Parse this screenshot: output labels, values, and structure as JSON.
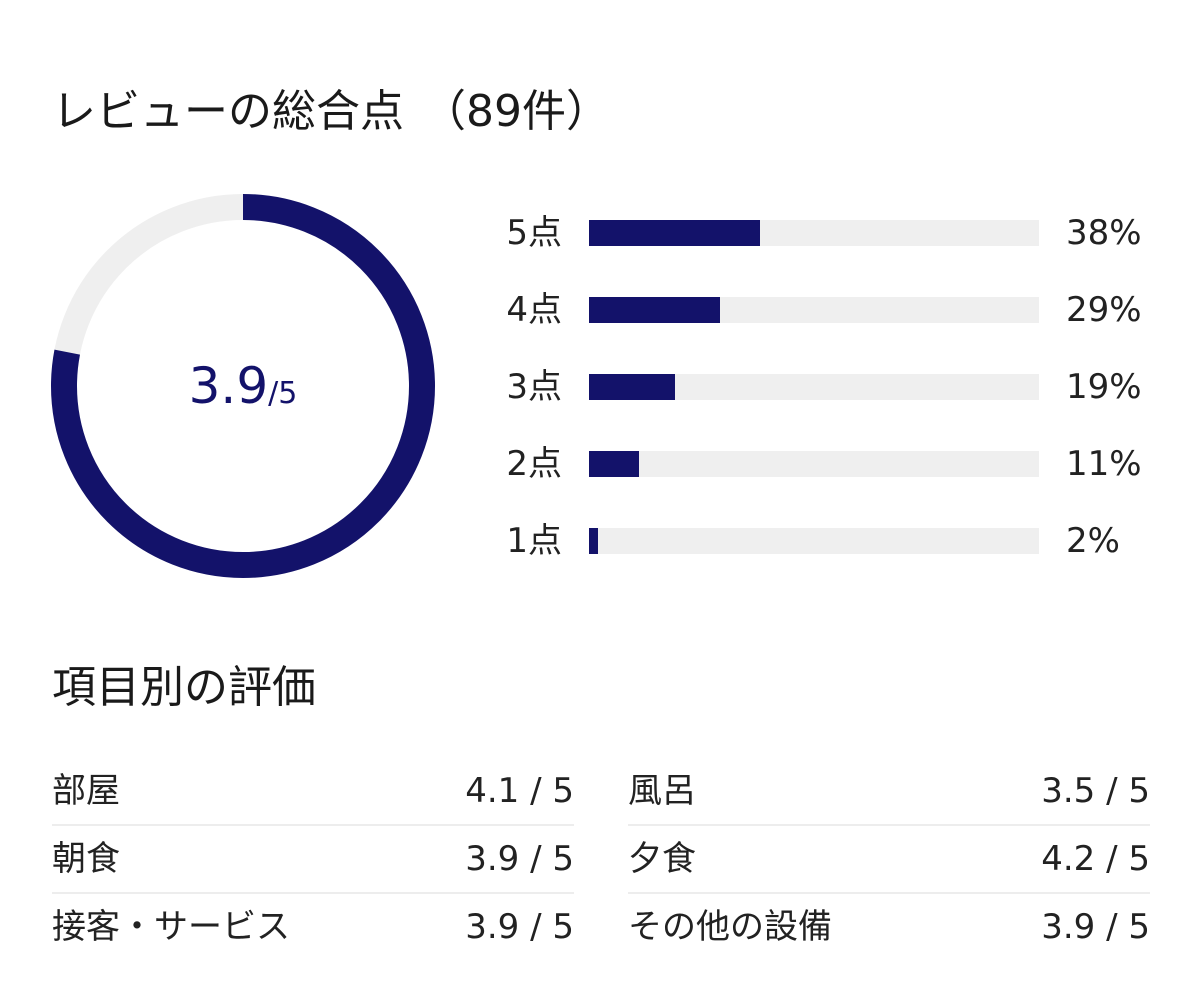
{
  "header": {
    "title": "レビューの総合点",
    "count": "（89件）"
  },
  "overall": {
    "score": "3.9",
    "max": "/5",
    "fraction": 0.78,
    "accent_color": "#13126a",
    "track_color": "#efefef"
  },
  "distribution": [
    {
      "label": "5点",
      "percent": 38,
      "percent_text": "38%"
    },
    {
      "label": "4点",
      "percent": 29,
      "percent_text": "29%"
    },
    {
      "label": "3点",
      "percent": 19,
      "percent_text": "19%"
    },
    {
      "label": "2点",
      "percent": 11,
      "percent_text": "11%"
    },
    {
      "label": "1点",
      "percent": 2,
      "percent_text": "2%"
    }
  ],
  "categories": {
    "title": "項目別の評価",
    "left": [
      {
        "label": "部屋",
        "value": "4.1 / 5"
      },
      {
        "label": "朝食",
        "value": "3.9 / 5"
      },
      {
        "label": "接客・サービス",
        "value": "3.9 / 5"
      }
    ],
    "right": [
      {
        "label": "風呂",
        "value": "3.5 / 5"
      },
      {
        "label": "夕食",
        "value": "4.2 / 5"
      },
      {
        "label": "その他の設備",
        "value": "3.9 / 5"
      }
    ]
  }
}
